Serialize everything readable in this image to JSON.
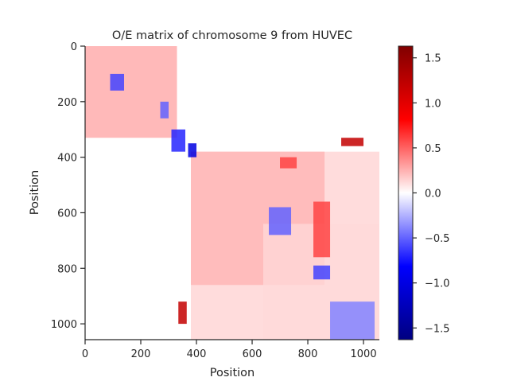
{
  "chart_data": {
    "type": "heatmap",
    "title": "O/E matrix of chromosome 9 from HUVEC",
    "xlabel": "Position",
    "ylabel": "Position",
    "xlim": [
      0,
      1057
    ],
    "ylim": [
      1057,
      0
    ],
    "x_ticks": [
      0,
      200,
      400,
      600,
      800,
      1000
    ],
    "y_ticks": [
      0,
      200,
      400,
      600,
      800,
      1000
    ],
    "colormap": "seismic",
    "colorbar": {
      "min": -1.63,
      "max": 1.63,
      "ticks": [
        1.5,
        1.0,
        0.5,
        0.0,
        -0.5,
        -1.0,
        -1.5
      ],
      "tick_labels": [
        "1.5",
        "1.0",
        "0.5",
        "0.0",
        "−0.5",
        "−1.0",
        "−1.5"
      ]
    },
    "blocks": [
      {
        "x": [
          0,
          330
        ],
        "y": [
          0,
          330
        ],
        "value": 0.3
      },
      {
        "x": [
          380,
          1057
        ],
        "y": [
          380,
          1057
        ],
        "value": 0.15
      },
      {
        "x": [
          380,
          860
        ],
        "y": [
          380,
          860
        ],
        "value": 0.25
      },
      {
        "x": [
          640,
          1057
        ],
        "y": [
          640,
          1057
        ],
        "value": 0.12
      }
    ],
    "features": [
      {
        "x": [
          90,
          140
        ],
        "y": [
          100,
          160
        ],
        "value": -0.6
      },
      {
        "x": [
          270,
          300
        ],
        "y": [
          200,
          260
        ],
        "value": -0.5
      },
      {
        "x": [
          310,
          360
        ],
        "y": [
          300,
          380
        ],
        "value": -0.7
      },
      {
        "x": [
          370,
          400
        ],
        "y": [
          350,
          400
        ],
        "value": -1.0
      },
      {
        "x": [
          660,
          740
        ],
        "y": [
          580,
          680
        ],
        "value": -0.5
      },
      {
        "x": [
          820,
          880
        ],
        "y": [
          790,
          840
        ],
        "value": -0.6
      },
      {
        "x": [
          880,
          1040
        ],
        "y": [
          920,
          1057
        ],
        "value": -0.4
      },
      {
        "x": [
          920,
          1000
        ],
        "y": [
          330,
          360
        ],
        "value": 1.2
      },
      {
        "x": [
          335,
          365
        ],
        "y": [
          920,
          1000
        ],
        "value": 1.2
      },
      {
        "x": [
          700,
          760
        ],
        "y": [
          400,
          440
        ],
        "value": 0.6
      },
      {
        "x": [
          820,
          880
        ],
        "y": [
          560,
          760
        ],
        "value": 0.6
      }
    ]
  }
}
